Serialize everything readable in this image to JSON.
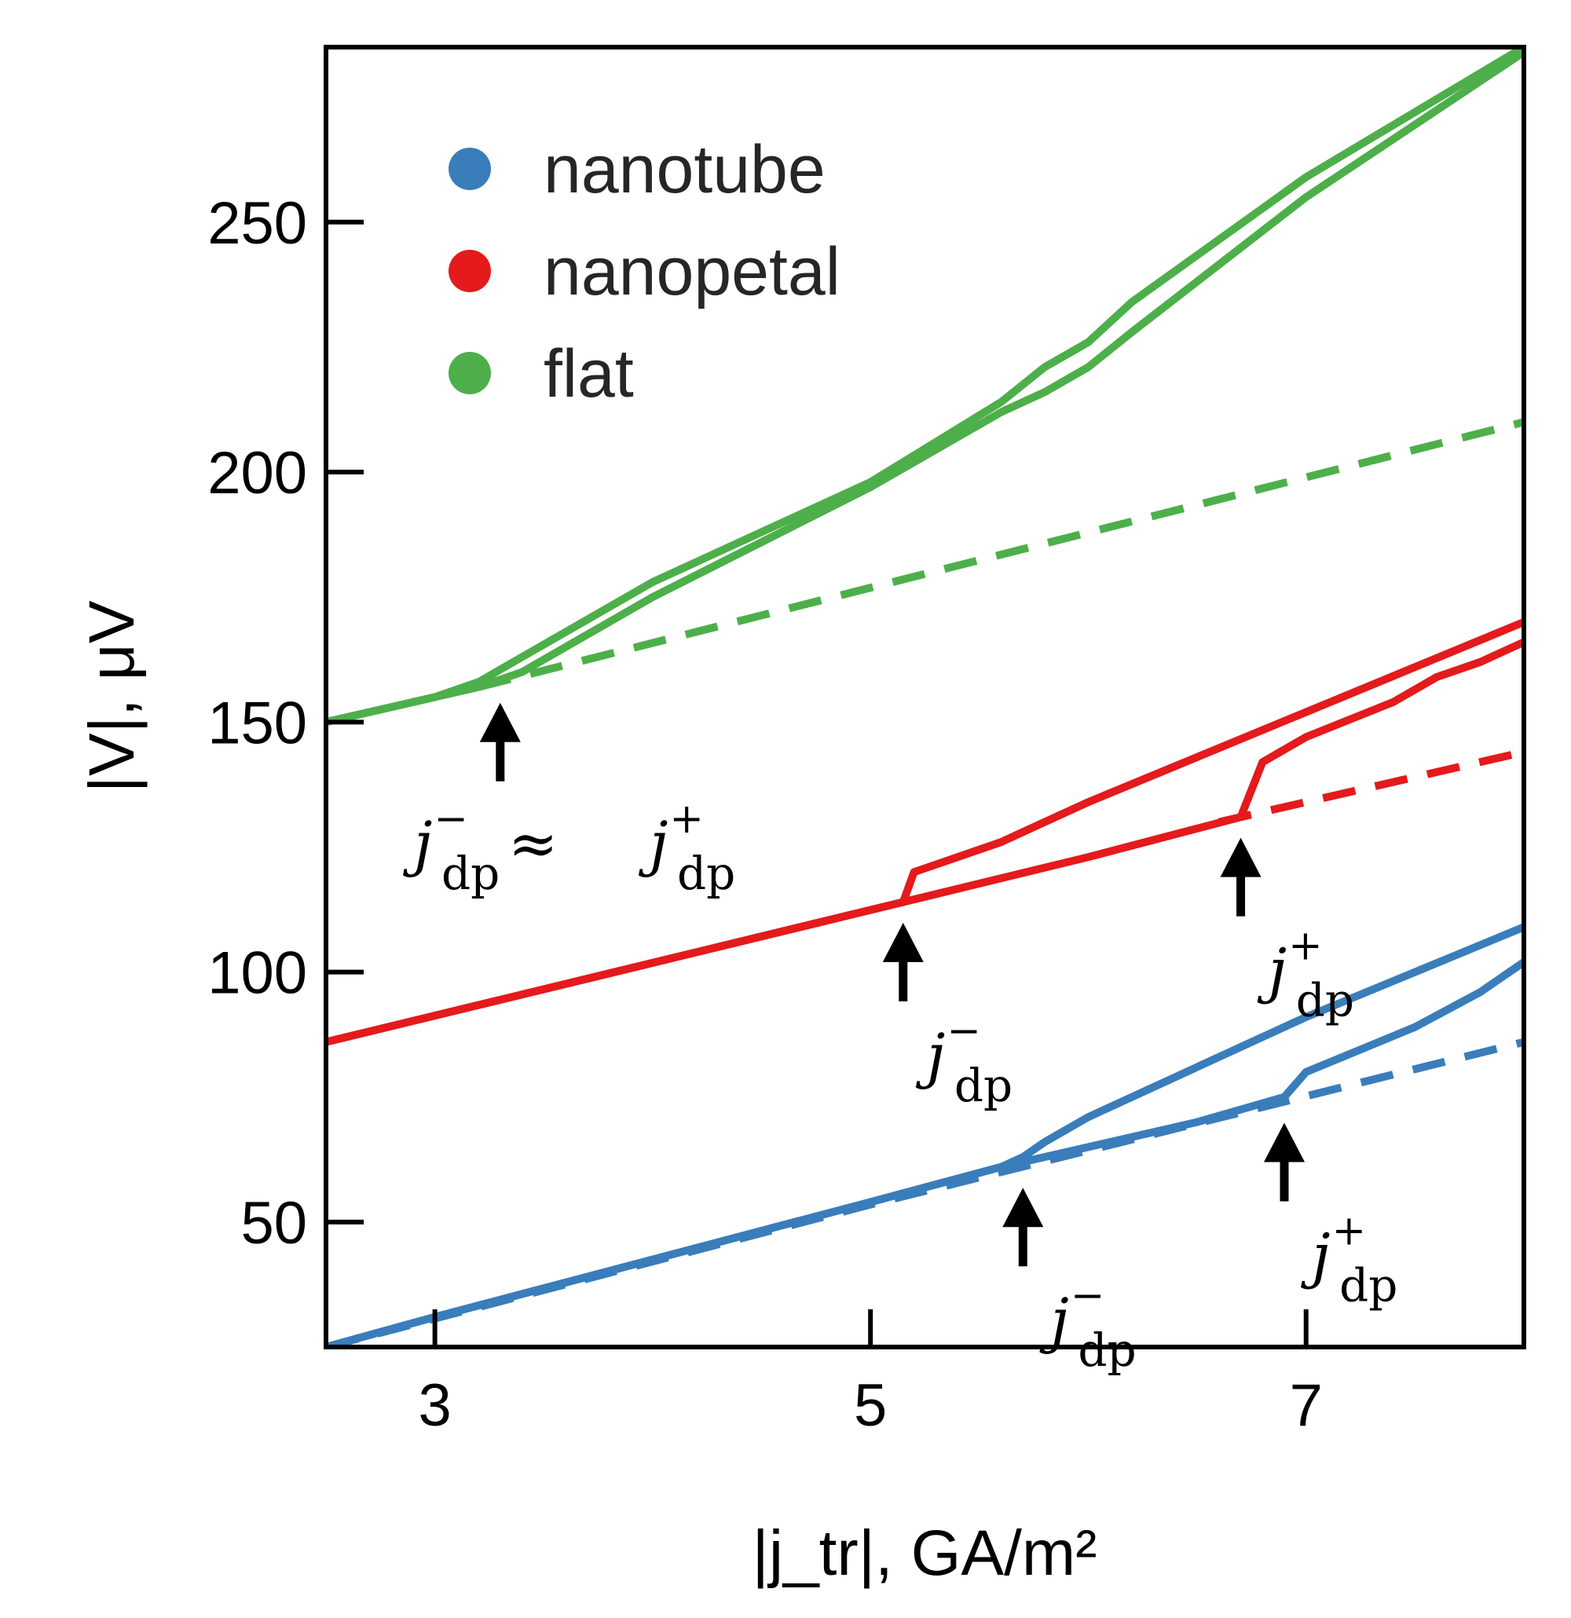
{
  "chart_data": {
    "type": "line",
    "title": "",
    "xlabel": "|j_tr|, GA/m²",
    "ylabel": "|V|, μV",
    "xlim": [
      2.5,
      8.0
    ],
    "ylim": [
      25,
      285
    ],
    "xticks": [
      3,
      5,
      7
    ],
    "yticks": [
      50,
      100,
      150,
      200,
      250
    ],
    "legend": {
      "placement": "top-left",
      "entries": [
        "nanotube",
        "nanopetal",
        "flat"
      ]
    },
    "colors": {
      "nanotube": "#3a7dbb",
      "nanopetal": "#e41a1c",
      "flat": "#4daf4a",
      "arrow": "#000000"
    },
    "series": [
      {
        "name": "nanotube",
        "style": "solid",
        "branch": "upper",
        "x": [
          2.5,
          3.0,
          4.0,
          5.0,
          5.6,
          5.7,
          5.8,
          6.0,
          6.5,
          7.0,
          7.5,
          8.0
        ],
        "y": [
          25,
          31,
          42.5,
          54,
          61,
          63,
          66,
          71,
          81,
          91,
          100,
          109
        ]
      },
      {
        "name": "nanotube",
        "style": "solid",
        "branch": "lower",
        "x": [
          2.5,
          3.0,
          4.0,
          5.0,
          5.6,
          6.0,
          6.5,
          6.9,
          7.0,
          7.5,
          7.8,
          8.0
        ],
        "y": [
          25,
          31,
          42.5,
          54,
          61,
          65,
          70,
          75,
          80,
          89,
          96,
          102
        ]
      },
      {
        "name": "nanotube",
        "style": "dashed",
        "branch": "baseline",
        "x": [
          2.5,
          5.0,
          8.0
        ],
        "y": [
          25,
          53.5,
          86
        ]
      },
      {
        "name": "nanopetal",
        "style": "solid",
        "branch": "upper",
        "x": [
          2.5,
          5.15,
          5.2,
          5.6,
          5.8,
          6.0,
          6.5,
          7.0,
          7.5,
          8.0
        ],
        "y": [
          86,
          114,
          120,
          126,
          130,
          134,
          143,
          152,
          161,
          170
        ]
      },
      {
        "name": "nanopetal",
        "style": "solid",
        "branch": "lower",
        "x": [
          2.5,
          5.15,
          6.0,
          6.7,
          6.8,
          7.0,
          7.4,
          7.6,
          7.8,
          8.0
        ],
        "y": [
          86,
          114,
          123,
          131,
          142,
          147,
          154,
          159,
          162,
          166
        ]
      },
      {
        "name": "nanopetal",
        "style": "dashed",
        "branch": "baseline",
        "x": [
          6.6,
          8.0
        ],
        "y": [
          130,
          144
        ]
      },
      {
        "name": "flat",
        "style": "solid",
        "branch": "upper",
        "x": [
          2.5,
          3.0,
          3.2,
          3.4,
          4.0,
          5.0,
          5.6,
          5.8,
          6.0,
          6.2,
          7.0,
          8.0
        ],
        "y": [
          150,
          155,
          158,
          163,
          178,
          198,
          214,
          221,
          226,
          234,
          259,
          285
        ]
      },
      {
        "name": "flat",
        "style": "solid",
        "branch": "lower",
        "x": [
          2.5,
          3.0,
          3.2,
          3.4,
          4.0,
          5.0,
          5.6,
          5.8,
          6.0,
          6.2,
          7.0,
          8.0
        ],
        "y": [
          150,
          155,
          157,
          160,
          175,
          197,
          212,
          216,
          221,
          228,
          255,
          284
        ]
      },
      {
        "name": "flat",
        "style": "dashed",
        "branch": "baseline",
        "x": [
          3.2,
          8.0
        ],
        "y": [
          157,
          210
        ]
      }
    ],
    "annotations": [
      {
        "id": "flat-dp",
        "text": "j_dp^- ≈ j_dp^+",
        "main": "j",
        "sub": "dp",
        "sup": "−",
        "approx": " ≈ ",
        "main2": "j",
        "sub2": "dp",
        "sup2": "+",
        "x": 3.3,
        "y": 157
      },
      {
        "id": "nanopetal-dp-minus",
        "text": "j_dp^-",
        "main": "j",
        "sub": "dp",
        "sup": "−",
        "x": 5.15,
        "y": 113
      },
      {
        "id": "nanopetal-dp-plus",
        "text": "j_dp^+",
        "main": "j",
        "sub": "dp",
        "sup": "+",
        "x": 6.7,
        "y": 130
      },
      {
        "id": "nanotube-dp-minus",
        "text": "j_dp^-",
        "main": "j",
        "sub": "dp",
        "sup": "−",
        "x": 5.7,
        "y": 60
      },
      {
        "id": "nanotube-dp-plus",
        "text": "j_dp^+",
        "main": "j",
        "sub": "dp",
        "sup": "+",
        "x": 6.9,
        "y": 73
      }
    ]
  }
}
